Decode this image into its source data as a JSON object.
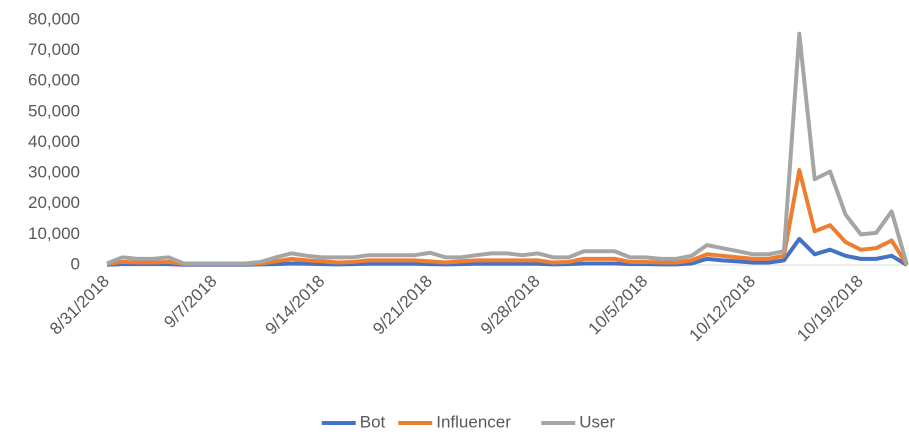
{
  "chart_data": {
    "type": "line",
    "categories": [
      "8/31/2018",
      null,
      null,
      null,
      null,
      null,
      null,
      "9/7/2018",
      null,
      null,
      null,
      null,
      null,
      null,
      "9/14/2018",
      null,
      null,
      null,
      null,
      null,
      null,
      "9/21/2018",
      null,
      null,
      null,
      null,
      null,
      null,
      "9/28/2018",
      null,
      null,
      null,
      null,
      null,
      null,
      "10/5/2018",
      null,
      null,
      null,
      null,
      null,
      null,
      "10/12/2018",
      null,
      null,
      null,
      null,
      null,
      null,
      "10/19/2018",
      null,
      null,
      null
    ],
    "series": [
      {
        "name": "Bot",
        "color": "#4472c4",
        "values": [
          100,
          300,
          300,
          300,
          300,
          100,
          100,
          100,
          100,
          100,
          200,
          300,
          500,
          400,
          300,
          200,
          300,
          400,
          400,
          400,
          400,
          300,
          200,
          300,
          400,
          400,
          400,
          400,
          400,
          200,
          300,
          500,
          500,
          500,
          300,
          300,
          200,
          200,
          500,
          2000,
          1500,
          1200,
          800,
          800,
          1500,
          8500,
          3500,
          5000,
          3000,
          2000,
          2000,
          3000,
          0
        ]
      },
      {
        "name": "Influencer",
        "color": "#ed7d31",
        "values": [
          300,
          1000,
          800,
          800,
          1000,
          300,
          300,
          300,
          300,
          300,
          500,
          1200,
          2000,
          1500,
          1200,
          800,
          1000,
          1500,
          1500,
          1500,
          1500,
          1200,
          800,
          1200,
          1500,
          1500,
          1500,
          1500,
          1500,
          800,
          1000,
          2000,
          2000,
          2000,
          1000,
          1000,
          800,
          800,
          1500,
          3500,
          3000,
          2500,
          2000,
          2000,
          3000,
          31000,
          11000,
          13000,
          7500,
          5000,
          5500,
          8000,
          0
        ]
      },
      {
        "name": "User",
        "color": "#a5a5a5",
        "values": [
          500,
          2500,
          2000,
          2000,
          2500,
          500,
          500,
          500,
          500,
          500,
          1000,
          2500,
          3800,
          3000,
          2500,
          2500,
          2500,
          3200,
          3200,
          3200,
          3200,
          4000,
          2500,
          2500,
          3200,
          3800,
          3800,
          3200,
          3800,
          2500,
          2500,
          4500,
          4500,
          4500,
          2500,
          2500,
          2000,
          2000,
          3000,
          6500,
          5500,
          4500,
          3500,
          3500,
          4500,
          75500,
          28000,
          30500,
          16500,
          10000,
          10500,
          17500,
          0
        ]
      }
    ],
    "ylim": [
      0,
      80000
    ],
    "yticks": [
      0,
      {
        "value": 10000,
        "label": "10,000"
      },
      {
        "value": 20000,
        "label": "20,000"
      },
      {
        "value": 30000,
        "label": "30,000"
      },
      {
        "value": 40000,
        "label": "40,000"
      },
      {
        "value": 50000,
        "label": "50,000"
      },
      {
        "value": 60000,
        "label": "60,000"
      },
      {
        "value": 70000,
        "label": "70,000"
      },
      {
        "value": 80000,
        "label": "80,000"
      }
    ],
    "grid": false,
    "legend": "bottom"
  }
}
